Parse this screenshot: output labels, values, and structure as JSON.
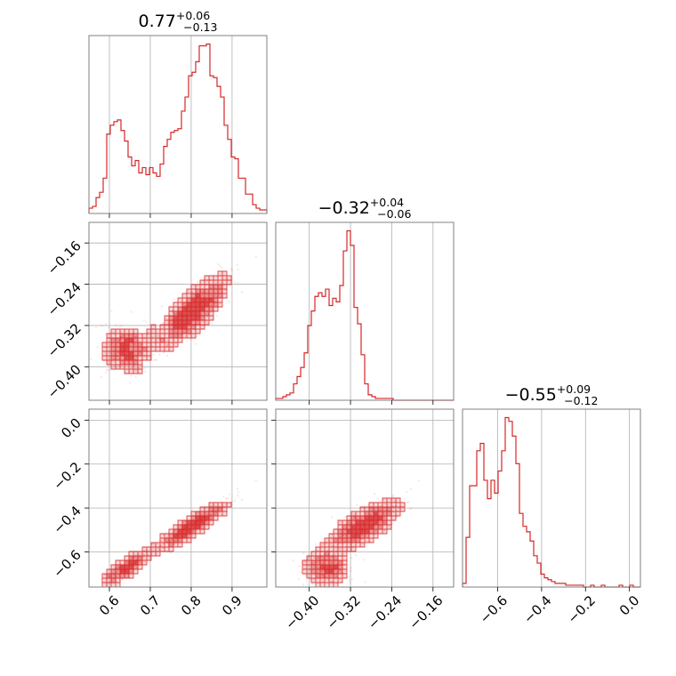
{
  "chart_data": {
    "type": "corner",
    "color": "#d62728",
    "parameters": [
      {
        "title_value": "0.77",
        "err_plus": "+0.06",
        "err_minus": "−0.13",
        "range": [
          0.55,
          0.985
        ],
        "ticks": [
          0.6,
          0.7,
          0.8,
          0.9
        ],
        "tick_labels": [
          "0.6",
          "0.7",
          "0.8",
          "0.9"
        ],
        "hist": {
          "start": 0.55,
          "bin_width": 0.0087,
          "counts": [
            0.03,
            0.04,
            0.09,
            0.12,
            0.2,
            0.45,
            0.5,
            0.52,
            0.53,
            0.47,
            0.41,
            0.32,
            0.27,
            0.3,
            0.23,
            0.26,
            0.22,
            0.26,
            0.23,
            0.21,
            0.28,
            0.38,
            0.42,
            0.46,
            0.47,
            0.48,
            0.58,
            0.66,
            0.78,
            0.8,
            0.86,
            0.95,
            0.95,
            0.96,
            0.78,
            0.77,
            0.72,
            0.66,
            0.5,
            0.42,
            0.32,
            0.31,
            0.2,
            0.2,
            0.11,
            0.11,
            0.05,
            0.03,
            0.02,
            0.02
          ]
        }
      },
      {
        "title_value": "−0.32",
        "err_plus": "+0.04",
        "err_minus": "−0.06",
        "range": [
          -0.465,
          -0.12
        ],
        "ticks": [
          -0.4,
          -0.32,
          -0.24,
          -0.16
        ],
        "tick_labels": [
          "−0.40",
          "−0.32",
          "−0.24",
          "−0.16"
        ],
        "hist": {
          "start": -0.465,
          "bin_width": 0.0069,
          "counts": [
            0.01,
            0.01,
            0.02,
            0.03,
            0.04,
            0.09,
            0.13,
            0.18,
            0.26,
            0.41,
            0.49,
            0.57,
            0.59,
            0.57,
            0.61,
            0.52,
            0.56,
            0.54,
            0.63,
            0.82,
            0.93,
            0.85,
            0.51,
            0.42,
            0.25,
            0.09,
            0.03,
            0.02,
            0.01,
            0.01,
            0.01,
            0.01,
            0.01,
            0.0,
            0.0,
            0.0,
            0.0,
            0.0,
            0.0,
            0.0,
            0.0,
            0.0,
            0.0,
            0.0,
            0.0,
            0.0,
            0.0,
            0.0,
            0.0,
            0.0
          ]
        }
      },
      {
        "title_value": "−0.55",
        "err_plus": "+0.09",
        "err_minus": "−0.12",
        "range": [
          -0.76,
          0.05
        ],
        "ticks": [
          -0.6,
          -0.4,
          -0.2,
          0.0
        ],
        "tick_labels": [
          "−0.6",
          "−0.4",
          "−0.2",
          "0.0"
        ],
        "hist": {
          "start": -0.76,
          "bin_width": 0.0162,
          "counts": [
            0.02,
            0.27,
            0.55,
            0.55,
            0.74,
            0.78,
            0.58,
            0.48,
            0.58,
            0.51,
            0.63,
            0.74,
            0.92,
            0.9,
            0.82,
            0.67,
            0.4,
            0.33,
            0.3,
            0.25,
            0.17,
            0.13,
            0.07,
            0.05,
            0.04,
            0.03,
            0.02,
            0.02,
            0.02,
            0.01,
            0.01,
            0.01,
            0.01,
            0.01,
            0.0,
            0.0,
            0.01,
            0.0,
            0.0,
            0.01,
            0.0,
            0.0,
            0.0,
            0.0,
            0.01,
            0.0,
            0.0,
            0.01,
            0.0,
            0.0
          ]
        }
      }
    ]
  }
}
